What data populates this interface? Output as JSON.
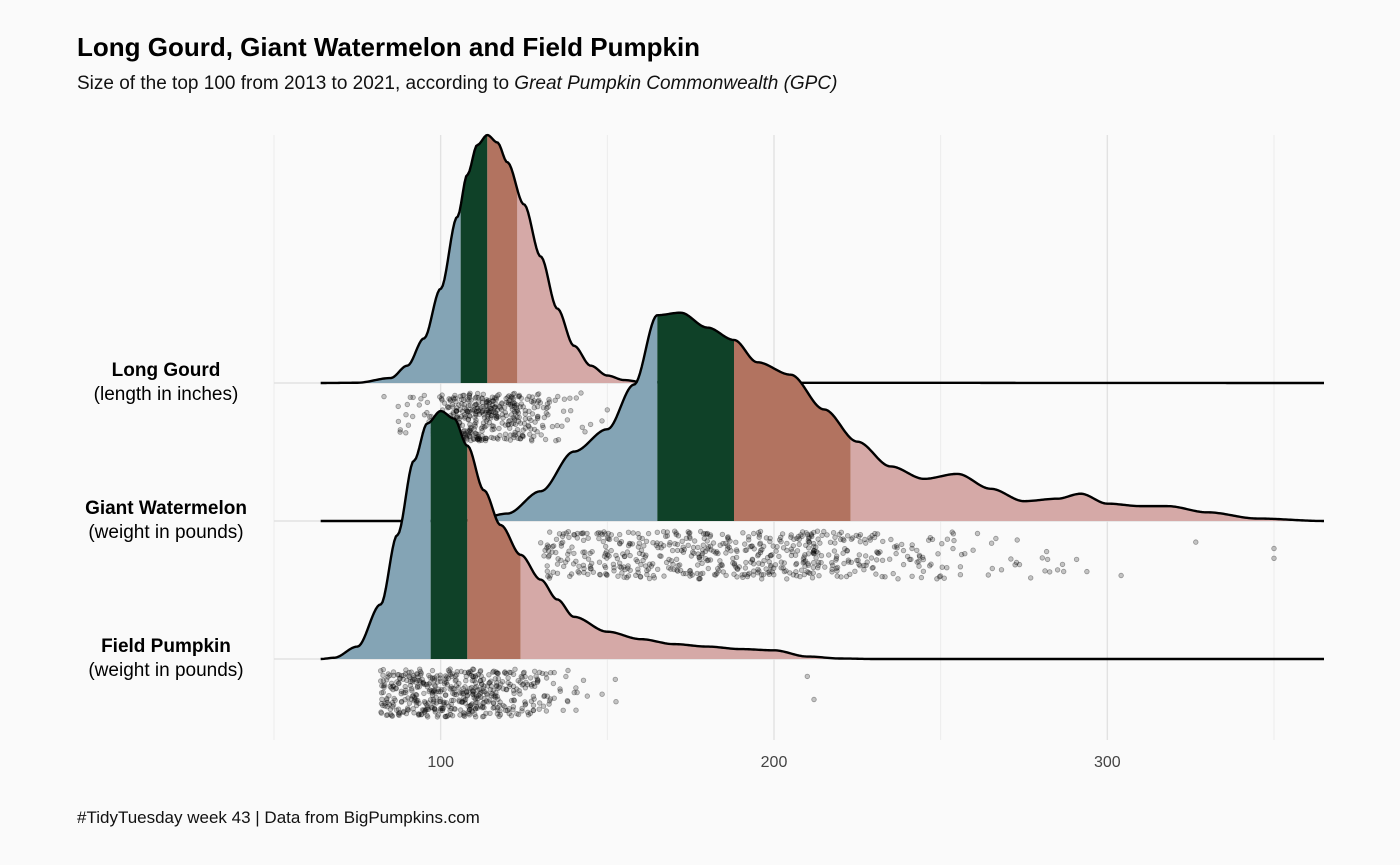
{
  "chart_data": {
    "type": "ridgeline",
    "title": "Long Gourd, Giant Watermelon and Field Pumpkin",
    "subtitle_main": "Size of the top 100 from 2013 to 2021, according to ",
    "subtitle_source": "Great Pumpkin Commonwealth (GPC)",
    "caption": "#TidyTuesday week 43 | Data from BigPumpkins.com",
    "xlim": [
      50,
      365
    ],
    "x_ticks": [
      {
        "value": 100,
        "label": "100"
      },
      {
        "value": 200,
        "label": "200"
      },
      {
        "value": 300,
        "label": "300"
      }
    ],
    "grid": true,
    "quantile_colors": [
      "#84a4b5",
      "#0f4128",
      "#b27360",
      "#d5a9a7"
    ],
    "series": [
      {
        "name": "Long Gourd",
        "unit": "(length in inches)",
        "quartiles": [
          106,
          114,
          123
        ],
        "density": [
          [
            64,
            0
          ],
          [
            75,
            0.001
          ],
          [
            85,
            0.02
          ],
          [
            90,
            0.07
          ],
          [
            95,
            0.18
          ],
          [
            100,
            0.38
          ],
          [
            105,
            0.67
          ],
          [
            108,
            0.84
          ],
          [
            111,
            0.96
          ],
          [
            114,
            1.0
          ],
          [
            117,
            0.97
          ],
          [
            120,
            0.89
          ],
          [
            125,
            0.72
          ],
          [
            130,
            0.51
          ],
          [
            135,
            0.3
          ],
          [
            140,
            0.15
          ],
          [
            145,
            0.07
          ],
          [
            150,
            0.03
          ],
          [
            155,
            0.012
          ],
          [
            160,
            0.005
          ],
          [
            170,
            0.001
          ],
          [
            365,
            0
          ]
        ],
        "points": {
          "count": 420,
          "min": 83,
          "max": 150,
          "mean": 115,
          "sd": 11,
          "sample_min": 90,
          "sample_max": 157,
          "seed": 11
        }
      },
      {
        "name": "Giant Watermelon",
        "unit": "(weight in pounds)",
        "quartiles": [
          165,
          188,
          223
        ],
        "density": [
          [
            64,
            0
          ],
          [
            100,
            0
          ],
          [
            110,
            0.003
          ],
          [
            120,
            0.03
          ],
          [
            130,
            0.12
          ],
          [
            140,
            0.28
          ],
          [
            150,
            0.37
          ],
          [
            158,
            0.55
          ],
          [
            165,
            0.83
          ],
          [
            172,
            0.84
          ],
          [
            180,
            0.78
          ],
          [
            188,
            0.73
          ],
          [
            195,
            0.64
          ],
          [
            205,
            0.59
          ],
          [
            215,
            0.45
          ],
          [
            225,
            0.32
          ],
          [
            235,
            0.22
          ],
          [
            245,
            0.17
          ],
          [
            255,
            0.19
          ],
          [
            265,
            0.13
          ],
          [
            275,
            0.08
          ],
          [
            285,
            0.09
          ],
          [
            292,
            0.11
          ],
          [
            300,
            0.07
          ],
          [
            310,
            0.06
          ],
          [
            318,
            0.06
          ],
          [
            330,
            0.035
          ],
          [
            345,
            0.01
          ],
          [
            365,
            0
          ]
        ],
        "points": {
          "count": 620,
          "min": 131,
          "max": 350,
          "mean": 190,
          "sd": 40,
          "sample_min": 130,
          "sample_max": 350,
          "seed": 23
        }
      },
      {
        "name": "Field Pumpkin",
        "unit": "(weight in pounds)",
        "quartiles": [
          97,
          108,
          124
        ],
        "density": [
          [
            64,
            0
          ],
          [
            68,
            0.005
          ],
          [
            75,
            0.05
          ],
          [
            82,
            0.22
          ],
          [
            87,
            0.5
          ],
          [
            92,
            0.8
          ],
          [
            96,
            0.95
          ],
          [
            100,
            1.0
          ],
          [
            104,
            0.97
          ],
          [
            108,
            0.86
          ],
          [
            113,
            0.68
          ],
          [
            118,
            0.54
          ],
          [
            124,
            0.42
          ],
          [
            130,
            0.32
          ],
          [
            135,
            0.24
          ],
          [
            140,
            0.17
          ],
          [
            150,
            0.11
          ],
          [
            160,
            0.08
          ],
          [
            170,
            0.06
          ],
          [
            180,
            0.05
          ],
          [
            190,
            0.04
          ],
          [
            200,
            0.035
          ],
          [
            210,
            0.01
          ],
          [
            220,
            0.002
          ],
          [
            230,
            0
          ],
          [
            365,
            0
          ]
        ],
        "points": {
          "count": 520,
          "min": 82,
          "max": 210,
          "mean": 104,
          "sd": 16,
          "sample_min": 82,
          "sample_max": 212,
          "seed": 37
        }
      }
    ]
  }
}
